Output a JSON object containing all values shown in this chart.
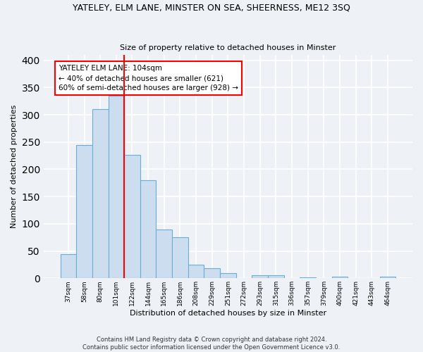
{
  "title": "YATELEY, ELM LANE, MINSTER ON SEA, SHEERNESS, ME12 3SQ",
  "subtitle": "Size of property relative to detached houses in Minster",
  "xlabel": "Distribution of detached houses by size in Minster",
  "ylabel": "Number of detached properties",
  "bar_labels": [
    "37sqm",
    "58sqm",
    "80sqm",
    "101sqm",
    "122sqm",
    "144sqm",
    "165sqm",
    "186sqm",
    "208sqm",
    "229sqm",
    "251sqm",
    "272sqm",
    "293sqm",
    "315sqm",
    "336sqm",
    "357sqm",
    "379sqm",
    "400sqm",
    "421sqm",
    "443sqm",
    "464sqm"
  ],
  "bar_heights": [
    44,
    245,
    311,
    335,
    227,
    180,
    90,
    75,
    25,
    18,
    10,
    0,
    5,
    6,
    0,
    2,
    0,
    3,
    0,
    0,
    3
  ],
  "bar_color": "#ccddf0",
  "bar_edge_color": "#6aaed6",
  "vline_index": 3,
  "vline_color": "red",
  "annotation_text": "YATELEY ELM LANE: 104sqm\n← 40% of detached houses are smaller (621)\n60% of semi-detached houses are larger (928) →",
  "annotation_box_color": "white",
  "annotation_box_edge": "red",
  "ylim": [
    0,
    410
  ],
  "yticks": [
    0,
    50,
    100,
    150,
    200,
    250,
    300,
    350,
    400
  ],
  "footnote1": "Contains HM Land Registry data © Crown copyright and database right 2024.",
  "footnote2": "Contains public sector information licensed under the Open Government Licence v3.0.",
  "bg_color": "#eef2f7",
  "grid_color": "white"
}
